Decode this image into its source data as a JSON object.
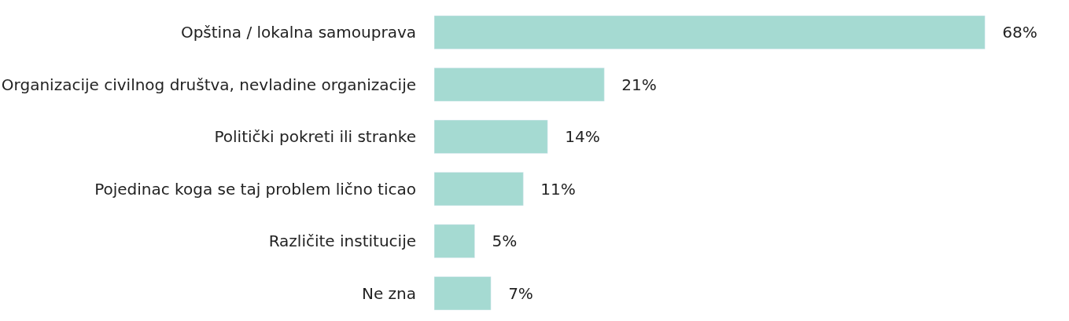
{
  "chart_data": {
    "type": "bar",
    "orientation": "horizontal",
    "categories": [
      "Opština / lokalna samouprava",
      "Organizacije civilnog društva, nevladine organizacije",
      "Politički pokreti ili stranke",
      "Pojedinac koga se taj problem lično ticao",
      "Različite institucije",
      "Ne zna"
    ],
    "values": [
      68,
      21,
      14,
      11,
      5,
      7
    ],
    "value_labels": [
      "68%",
      "21%",
      "14%",
      "11%",
      "5%",
      "7%"
    ],
    "color": "#a5dad2"
  }
}
